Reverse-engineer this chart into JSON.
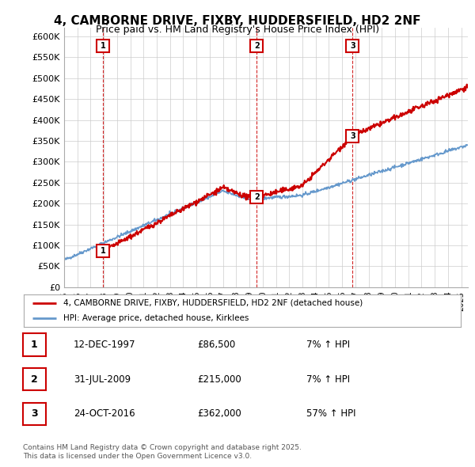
{
  "title": "4, CAMBORNE DRIVE, FIXBY, HUDDERSFIELD, HD2 2NF",
  "subtitle": "Price paid vs. HM Land Registry's House Price Index (HPI)",
  "ylim": [
    0,
    620000
  ],
  "yticks": [
    0,
    50000,
    100000,
    150000,
    200000,
    250000,
    300000,
    350000,
    400000,
    450000,
    500000,
    550000,
    600000
  ],
  "ytick_labels": [
    "£0",
    "£50K",
    "£100K",
    "£150K",
    "£200K",
    "£250K",
    "£300K",
    "£350K",
    "£400K",
    "£450K",
    "£500K",
    "£550K",
    "£600K"
  ],
  "sale_prices": [
    86500,
    215000,
    362000
  ],
  "sale_labels": [
    "1",
    "2",
    "3"
  ],
  "sale_color": "#cc0000",
  "hpi_color": "#6699cc",
  "vline_color": "#cc0000",
  "legend_label_red": "4, CAMBORNE DRIVE, FIXBY, HUDDERSFIELD, HD2 2NF (detached house)",
  "legend_label_blue": "HPI: Average price, detached house, Kirklees",
  "table_rows": [
    [
      "1",
      "12-DEC-1997",
      "£86,500",
      "7% ↑ HPI"
    ],
    [
      "2",
      "31-JUL-2009",
      "£215,000",
      "7% ↑ HPI"
    ],
    [
      "3",
      "24-OCT-2016",
      "£362,000",
      "57% ↑ HPI"
    ]
  ],
  "footnote": "Contains HM Land Registry data © Crown copyright and database right 2025.\nThis data is licensed under the Open Government Licence v3.0.",
  "bg_color": "#ffffff",
  "plot_bg_color": "#ffffff",
  "grid_color": "#cccccc"
}
